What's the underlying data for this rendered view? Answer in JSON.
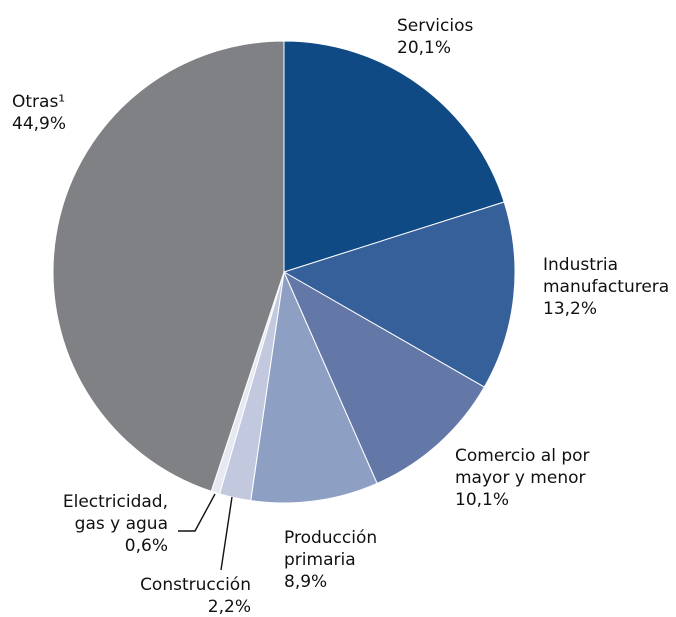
{
  "chart_data": {
    "type": "pie",
    "title": "",
    "start_angle_deg": 0,
    "direction": "clockwise",
    "slices": [
      {
        "label_lines": [
          "Servicios"
        ],
        "value": 20.1,
        "value_label": "20,1%",
        "color": "#0f4a85"
      },
      {
        "label_lines": [
          "Industria",
          "manufacturera"
        ],
        "value": 13.2,
        "value_label": "13,2%",
        "color": "#36609a"
      },
      {
        "label_lines": [
          "Comercio al por",
          "mayor y menor"
        ],
        "value": 10.1,
        "value_label": "10,1%",
        "color": "#6478a8"
      },
      {
        "label_lines": [
          "Producción",
          "primaria"
        ],
        "value": 8.9,
        "value_label": "8,9%",
        "color": "#8e9fc4"
      },
      {
        "label_lines": [
          "Construcción"
        ],
        "value": 2.2,
        "value_label": "2,2%",
        "color": "#c2c9de"
      },
      {
        "label_lines": [
          "Electricidad,",
          "gas y agua"
        ],
        "value": 0.6,
        "value_label": "0,6%",
        "color": "#e6e9f1"
      },
      {
        "label_lines": [
          "Otras¹"
        ],
        "value": 44.9,
        "value_label": "44,9%",
        "color": "#808184"
      }
    ]
  }
}
